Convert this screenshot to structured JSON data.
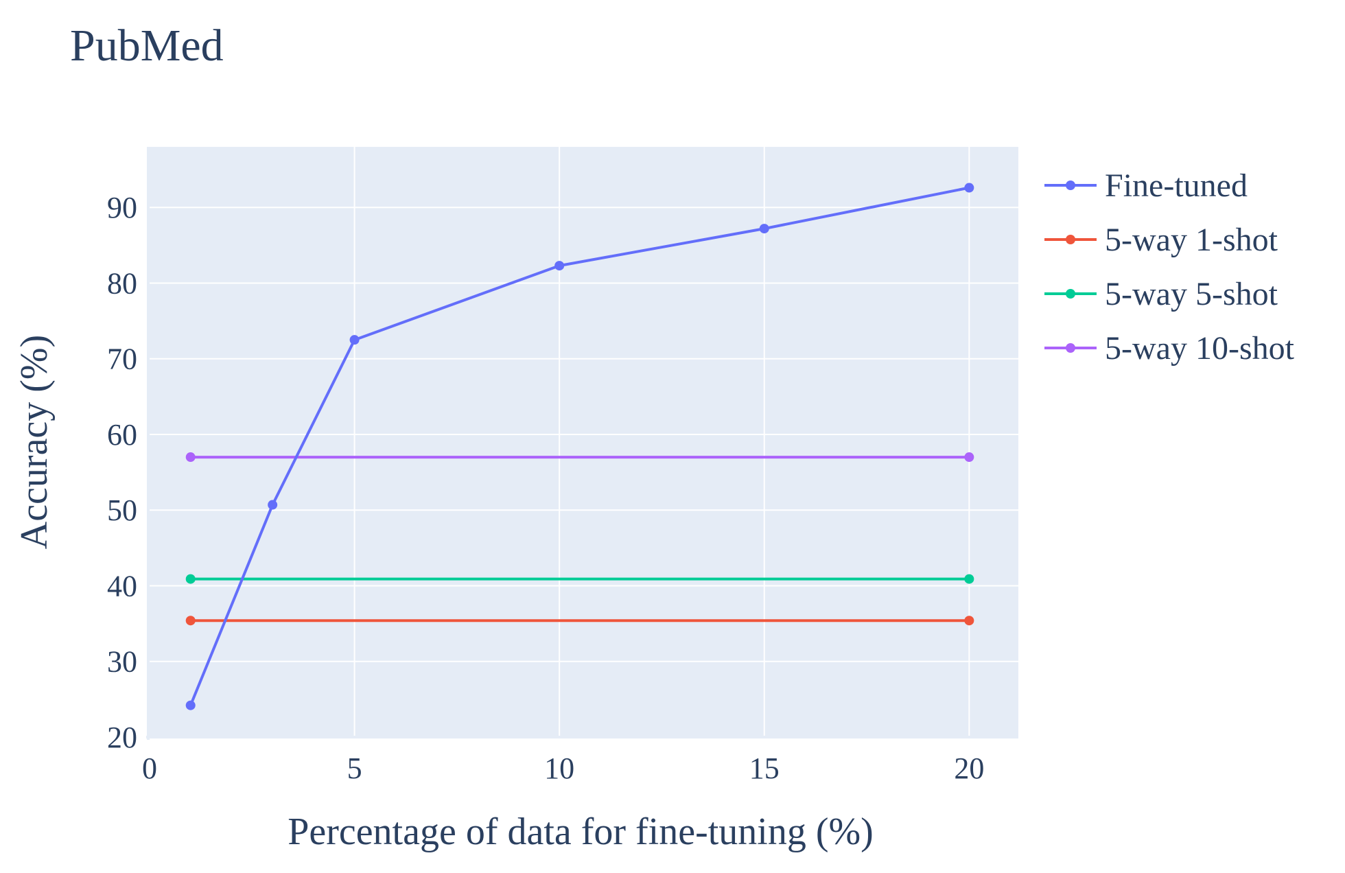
{
  "chart_data": {
    "type": "line",
    "title": "PubMed",
    "xlabel": "Percentage of data for fine-tuning (%)",
    "ylabel": "Accuracy (%)",
    "xlim": [
      0,
      21.2
    ],
    "ylim": [
      20,
      98
    ],
    "xticks": [
      0,
      5,
      10,
      15,
      20
    ],
    "yticks": [
      20,
      30,
      40,
      50,
      60,
      70,
      80,
      90
    ],
    "grid": true,
    "legend_position": "right",
    "plot_background": "#e5ecf6",
    "series": [
      {
        "name": "Fine-tuned",
        "color": "#636efa",
        "x": [
          1,
          3,
          5,
          10,
          15,
          20
        ],
        "y": [
          24.2,
          50.7,
          72.5,
          82.3,
          87.2,
          92.6
        ]
      },
      {
        "name": "5-way 1-shot",
        "color": "#ef553b",
        "x": [
          1,
          20
        ],
        "y": [
          35.4,
          35.4
        ]
      },
      {
        "name": "5-way 5-shot",
        "color": "#00cc96",
        "x": [
          1,
          20
        ],
        "y": [
          40.9,
          40.9
        ]
      },
      {
        "name": "5-way 10-shot",
        "color": "#ab63fa",
        "x": [
          1,
          20
        ],
        "y": [
          57.0,
          57.0
        ]
      }
    ]
  }
}
